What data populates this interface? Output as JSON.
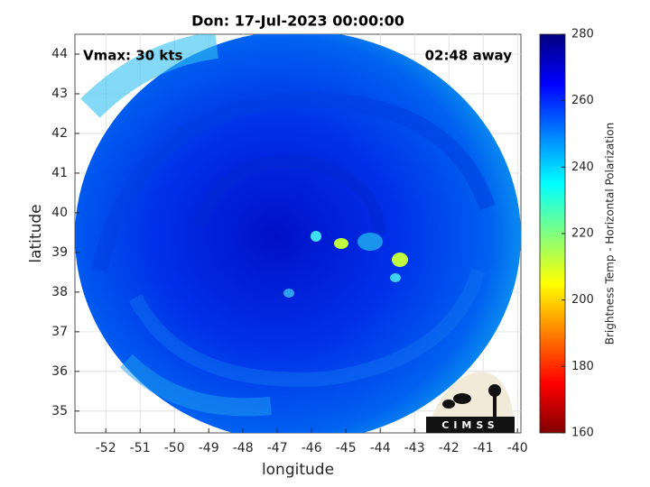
{
  "chart_data": {
    "type": "image",
    "title": "Don: 17-Jul-2023 00:00:00",
    "annotations": [
      "Vmax: 30 kts",
      "02:48 away"
    ],
    "xlabel": "longitude",
    "ylabel": "latitude",
    "xlim": [
      -52.9,
      -39.9
    ],
    "xticks": [
      -52,
      -51,
      -50,
      -49,
      -48,
      -47,
      -46,
      -45,
      -44,
      -43,
      -42,
      -41,
      -40
    ],
    "ylim": [
      34.45,
      44.5
    ],
    "yticks": [
      35,
      36,
      37,
      38,
      39,
      40,
      41,
      42,
      43,
      44
    ],
    "grid": true,
    "colorbar": {
      "label": "Brightness Temp - Horizontal Polarization",
      "lim": [
        160,
        280
      ],
      "ticks": [
        160,
        180,
        200,
        220,
        240,
        260,
        280
      ],
      "colormap": [
        "#800000",
        "#ff0000",
        "#ff8000",
        "#ffff00",
        "#80ff80",
        "#00ffff",
        "#0080ff",
        "#0000ff",
        "#000080"
      ]
    },
    "logo": "CIMSS"
  }
}
